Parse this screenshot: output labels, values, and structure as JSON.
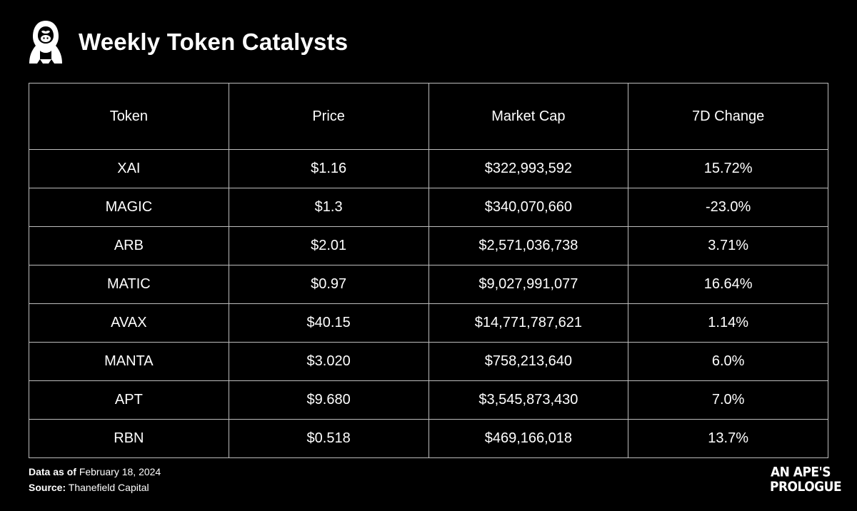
{
  "header": {
    "title": "Weekly Token Catalysts",
    "logo_icon": "ape-logo-icon"
  },
  "table": {
    "columns": [
      "Token",
      "Price",
      "Market Cap",
      "7D Change"
    ],
    "rows": [
      [
        "XAI",
        "$1.16",
        "$322,993,592",
        "15.72%"
      ],
      [
        "MAGIC",
        "$1.3",
        "$340,070,660",
        "-23.0%"
      ],
      [
        "ARB",
        "$2.01",
        "$2,571,036,738",
        "3.71%"
      ],
      [
        "MATIC",
        "$0.97",
        "$9,027,991,077",
        "16.64%"
      ],
      [
        "AVAX",
        "$40.15",
        "$14,771,787,621",
        "1.14%"
      ],
      [
        "MANTA",
        "$3.020",
        "$758,213,640",
        "6.0%"
      ],
      [
        "APT",
        "$9.680",
        "$3,545,873,430",
        "7.0%"
      ],
      [
        "RBN",
        "$0.518",
        "$469,166,018",
        "13.7%"
      ]
    ]
  },
  "footer": {
    "date_label": "Data as of",
    "date_value": "February 18, 2024",
    "source_label": "Source",
    "source_value": "Thanefield Capital"
  },
  "brand": {
    "line1": "AN APE'S",
    "line2": "PROLOGUE"
  },
  "colors": {
    "background": "#000000",
    "text": "#ffffff",
    "border": "#bdbdbd"
  }
}
